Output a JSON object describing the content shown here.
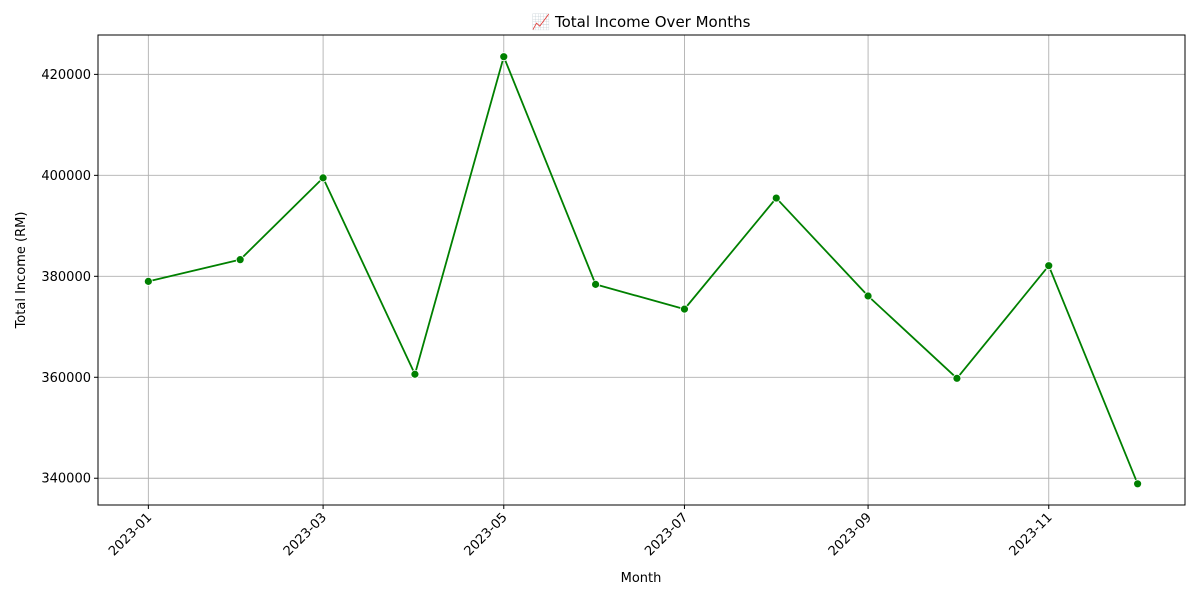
{
  "chart_data": {
    "type": "line",
    "title": "📈 Total Income Over Months",
    "xlabel": "Month",
    "ylabel": "Total Income (RM)",
    "x": [
      "2023-01-01",
      "2023-02-01",
      "2023-03-01",
      "2023-04-01",
      "2023-05-01",
      "2023-06-01",
      "2023-07-01",
      "2023-08-01",
      "2023-09-01",
      "2023-10-01",
      "2023-11-01",
      "2023-12-01"
    ],
    "series": [
      {
        "values": [
          379000,
          383300,
          399500,
          360600,
          423500,
          378400,
          373500,
          395500,
          376100,
          359800,
          382100,
          338900
        ],
        "color": "#008000"
      }
    ],
    "x_ticks": [
      "2023-01",
      "2023-03",
      "2023-05",
      "2023-07",
      "2023-09",
      "2023-11"
    ],
    "y_ticks": [
      340000,
      360000,
      380000,
      400000,
      420000
    ],
    "xlim": [
      "2022-12-15",
      "2023-12-17"
    ],
    "ylim": [
      334700,
      427800
    ],
    "grid": true,
    "legend": "none",
    "marker": "circle"
  }
}
